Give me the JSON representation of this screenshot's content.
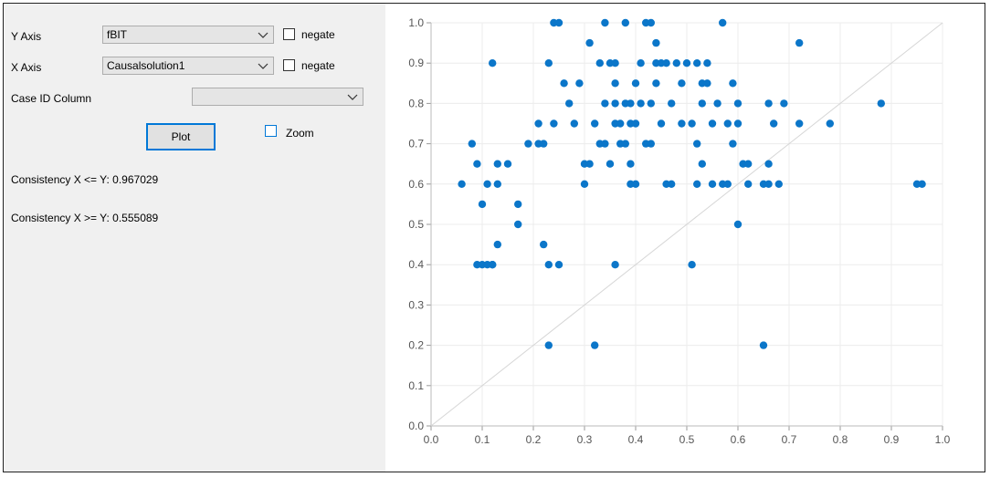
{
  "controls": {
    "y_axis_label": "Y Axis",
    "y_axis_value": "fBIT",
    "x_axis_label": "X Axis",
    "x_axis_value": "Causalsolution1",
    "negate_label": "negate",
    "case_id_label": "Case ID Column",
    "case_id_value": "",
    "plot_label": "Plot",
    "zoom_label": "Zoom"
  },
  "results": {
    "consistency_x_le_y": "Consistency X <= Y: 0.967029",
    "consistency_x_ge_y": "Consistency X >= Y: 0.555089"
  },
  "colors": {
    "point": "#0b76c9",
    "diagonal": "#d6d6d6",
    "grid": "#ececec"
  },
  "chart_data": {
    "type": "scatter",
    "xlim": [
      0,
      1
    ],
    "ylim": [
      0,
      1
    ],
    "x_ticks": [
      "0.0",
      "0.1",
      "0.2",
      "0.3",
      "0.4",
      "0.5",
      "0.6",
      "0.7",
      "0.8",
      "0.9",
      "1.0"
    ],
    "y_ticks": [
      "0.0",
      "0.1",
      "0.2",
      "0.3",
      "0.4",
      "0.5",
      "0.6",
      "0.7",
      "0.8",
      "0.9",
      "1.0"
    ],
    "grid": true,
    "diagonal_line": true,
    "points": [
      [
        0.06,
        0.6
      ],
      [
        0.08,
        0.7
      ],
      [
        0.09,
        0.65
      ],
      [
        0.1,
        0.55
      ],
      [
        0.11,
        0.6
      ],
      [
        0.12,
        0.9
      ],
      [
        0.13,
        0.65
      ],
      [
        0.13,
        0.6
      ],
      [
        0.15,
        0.65
      ],
      [
        0.13,
        0.45
      ],
      [
        0.09,
        0.4
      ],
      [
        0.1,
        0.4
      ],
      [
        0.11,
        0.4
      ],
      [
        0.12,
        0.4
      ],
      [
        0.17,
        0.55
      ],
      [
        0.17,
        0.5
      ],
      [
        0.19,
        0.7
      ],
      [
        0.21,
        0.75
      ],
      [
        0.21,
        0.7
      ],
      [
        0.22,
        0.7
      ],
      [
        0.22,
        0.45
      ],
      [
        0.23,
        0.4
      ],
      [
        0.25,
        0.4
      ],
      [
        0.23,
        0.9
      ],
      [
        0.24,
        0.75
      ],
      [
        0.24,
        1.0
      ],
      [
        0.25,
        1.0
      ],
      [
        0.26,
        0.85
      ],
      [
        0.27,
        0.8
      ],
      [
        0.28,
        0.75
      ],
      [
        0.29,
        0.85
      ],
      [
        0.3,
        0.65
      ],
      [
        0.3,
        0.6
      ],
      [
        0.31,
        0.95
      ],
      [
        0.31,
        0.65
      ],
      [
        0.32,
        0.75
      ],
      [
        0.33,
        0.9
      ],
      [
        0.33,
        0.7
      ],
      [
        0.34,
        0.8
      ],
      [
        0.34,
        0.7
      ],
      [
        0.34,
        1.0
      ],
      [
        0.35,
        0.9
      ],
      [
        0.35,
        0.65
      ],
      [
        0.36,
        0.9
      ],
      [
        0.36,
        0.85
      ],
      [
        0.36,
        0.8
      ],
      [
        0.36,
        0.75
      ],
      [
        0.37,
        0.75
      ],
      [
        0.37,
        0.7
      ],
      [
        0.38,
        0.8
      ],
      [
        0.38,
        0.7
      ],
      [
        0.38,
        1.0
      ],
      [
        0.39,
        0.8
      ],
      [
        0.39,
        0.75
      ],
      [
        0.39,
        0.65
      ],
      [
        0.39,
        0.6
      ],
      [
        0.4,
        0.85
      ],
      [
        0.4,
        0.75
      ],
      [
        0.4,
        0.6
      ],
      [
        0.41,
        0.8
      ],
      [
        0.41,
        0.9
      ],
      [
        0.42,
        1.0
      ],
      [
        0.42,
        0.7
      ],
      [
        0.43,
        0.7
      ],
      [
        0.43,
        1.0
      ],
      [
        0.43,
        0.8
      ],
      [
        0.44,
        0.95
      ],
      [
        0.44,
        0.85
      ],
      [
        0.44,
        0.9
      ],
      [
        0.45,
        0.75
      ],
      [
        0.45,
        0.9
      ],
      [
        0.46,
        0.9
      ],
      [
        0.46,
        0.6
      ],
      [
        0.47,
        0.6
      ],
      [
        0.47,
        0.8
      ],
      [
        0.48,
        0.9
      ],
      [
        0.49,
        0.85
      ],
      [
        0.49,
        0.75
      ],
      [
        0.5,
        0.9
      ],
      [
        0.51,
        0.75
      ],
      [
        0.51,
        0.4
      ],
      [
        0.52,
        0.9
      ],
      [
        0.52,
        0.7
      ],
      [
        0.52,
        0.6
      ],
      [
        0.53,
        0.85
      ],
      [
        0.53,
        0.8
      ],
      [
        0.53,
        0.65
      ],
      [
        0.54,
        0.85
      ],
      [
        0.54,
        0.9
      ],
      [
        0.55,
        0.75
      ],
      [
        0.55,
        0.6
      ],
      [
        0.56,
        0.8
      ],
      [
        0.57,
        0.6
      ],
      [
        0.57,
        1.0
      ],
      [
        0.58,
        0.75
      ],
      [
        0.58,
        0.6
      ],
      [
        0.59,
        0.85
      ],
      [
        0.59,
        0.7
      ],
      [
        0.6,
        0.8
      ],
      [
        0.6,
        0.75
      ],
      [
        0.6,
        0.5
      ],
      [
        0.61,
        0.65
      ],
      [
        0.62,
        0.65
      ],
      [
        0.62,
        0.6
      ],
      [
        0.65,
        0.6
      ],
      [
        0.65,
        0.2
      ],
      [
        0.66,
        0.8
      ],
      [
        0.66,
        0.65
      ],
      [
        0.66,
        0.6
      ],
      [
        0.67,
        0.75
      ],
      [
        0.68,
        0.6
      ],
      [
        0.69,
        0.8
      ],
      [
        0.72,
        0.95
      ],
      [
        0.72,
        0.75
      ],
      [
        0.78,
        0.75
      ],
      [
        0.88,
        0.8
      ],
      [
        0.95,
        0.6
      ],
      [
        0.96,
        0.6
      ],
      [
        0.23,
        0.2
      ],
      [
        0.32,
        0.2
      ],
      [
        0.36,
        0.4
      ],
      [
        0.12,
        0.4
      ]
    ]
  }
}
